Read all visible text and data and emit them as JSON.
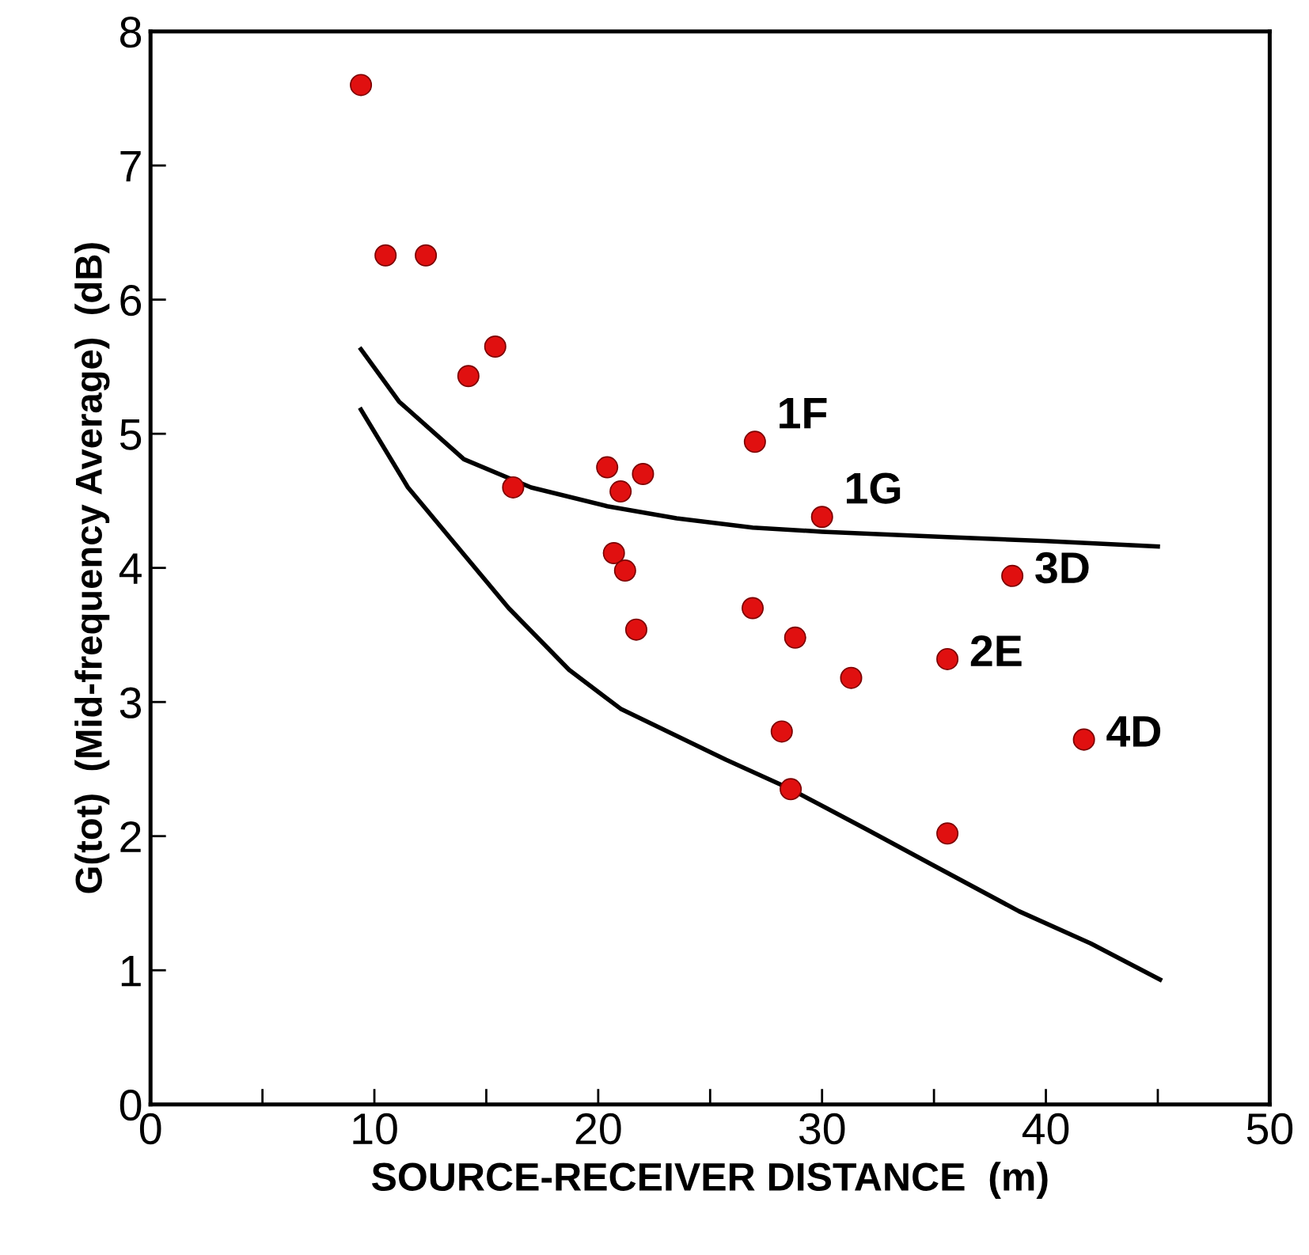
{
  "chart_data": {
    "type": "scatter",
    "xlabel": "SOURCE-RECEIVER DISTANCE  (m)",
    "ylabel": "G(tot)  (Mid-frequency Average)  (dB)",
    "xlim": [
      0,
      50
    ],
    "ylim": [
      0,
      8
    ],
    "xticks": [
      0,
      {
        "value": 5,
        "label": null
      },
      10,
      {
        "value": 15,
        "label": null
      },
      20,
      {
        "value": 25,
        "label": null
      },
      30,
      {
        "value": 35,
        "label": null
      },
      40,
      {
        "value": 45,
        "label": null
      },
      50
    ],
    "yticks": [
      0,
      1,
      2,
      3,
      4,
      5,
      6,
      7,
      8
    ],
    "grid": false,
    "marker": "circle",
    "series": [
      {
        "color": "#e01010",
        "x": [
          9.4,
          10.5,
          12.3,
          14.2,
          15.4,
          16.2,
          20.4,
          22.0,
          21.0,
          20.7,
          21.2,
          21.7,
          27.0,
          30.0,
          26.9,
          28.8,
          31.3,
          35.6,
          38.5,
          41.7,
          28.2,
          28.6,
          35.6
        ],
        "values": [
          7.6,
          6.33,
          6.33,
          5.43,
          5.65,
          4.6,
          4.75,
          4.7,
          4.57,
          4.11,
          3.98,
          3.54,
          4.94,
          4.38,
          3.7,
          3.48,
          3.18,
          3.32,
          3.94,
          2.72,
          2.78,
          2.35,
          2.02
        ]
      },
      {
        "type": "line",
        "color": "#000000",
        "marker": "none",
        "x": [
          9.4,
          11.1,
          14.0,
          17.0,
          20.4,
          23.5,
          26.9,
          30.0,
          35.6,
          40.0,
          45.0
        ],
        "values": [
          5.63,
          5.24,
          4.81,
          4.6,
          4.46,
          4.37,
          4.3,
          4.27,
          4.23,
          4.2,
          4.16
        ]
      },
      {
        "type": "line",
        "color": "#000000",
        "marker": "none",
        "x": [
          9.4,
          11.5,
          14.0,
          16.0,
          18.7,
          21.0,
          25.7,
          28.6,
          32.0,
          35.0,
          38.8,
          42.0,
          45.1
        ],
        "values": [
          5.18,
          4.6,
          4.1,
          3.7,
          3.24,
          2.95,
          2.57,
          2.35,
          2.05,
          1.78,
          1.44,
          1.2,
          0.93
        ]
      }
    ],
    "annotations": [
      {
        "text": "1F",
        "x": 27.0,
        "y": 4.94
      },
      {
        "text": "1G",
        "x": 30.0,
        "y": 4.38
      },
      {
        "text": "3D",
        "x": 38.5,
        "y": 3.94
      },
      {
        "text": "2E",
        "x": 35.6,
        "y": 3.32
      },
      {
        "text": "4D",
        "x": 41.7,
        "y": 2.72
      }
    ]
  }
}
